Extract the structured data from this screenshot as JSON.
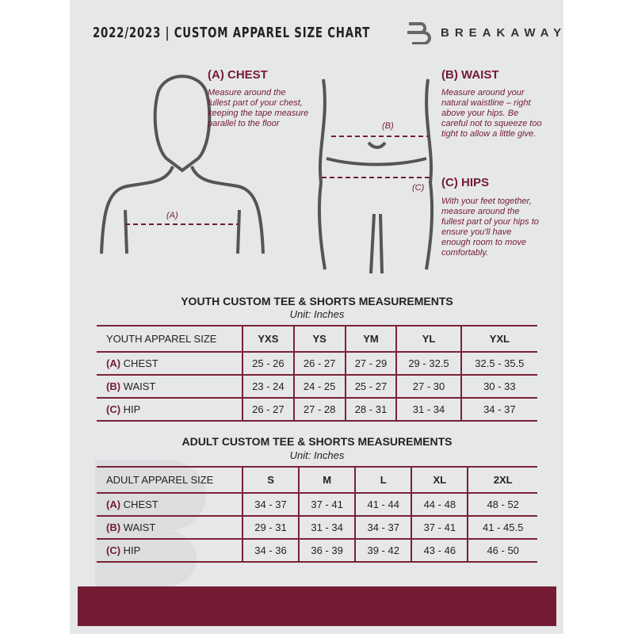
{
  "header": {
    "title": "2022/2023  |  CUSTOM APPAREL SIZE CHART",
    "brand": "BREAKAWAY"
  },
  "chest": {
    "heading": "(A) CHEST",
    "text": "Measure around the fullest part of your chest, keeping the tape measure parallel to the floor",
    "marker": "(A)"
  },
  "waist": {
    "heading": "(B) WAIST",
    "text": "Measure around your natural waistline – right above your hips. Be careful not to squeeze too tight to allow a little give.",
    "marker": "(B)"
  },
  "hips": {
    "heading": "(C) HIPS",
    "text": "With your feet together, measure around the fullest part of your hips to ensure you'll have enough room to move comfortably.",
    "marker": "(C)"
  },
  "colors": {
    "accent": "#731c33",
    "background": "#e6e7e8"
  },
  "youth": {
    "title": "YOUTH CUSTOM TEE & SHORTS MEASUREMENTS",
    "unit": "Unit: Inches",
    "size_label": "YOUTH APPAREL SIZE",
    "sizes": [
      "YXS",
      "YS",
      "YM",
      "YL",
      "YXL"
    ],
    "rows": [
      {
        "letter": "(A)",
        "name": "CHEST",
        "values": [
          "25 - 26",
          "26 - 27",
          "27 - 29",
          "29 - 32.5",
          "32.5 - 35.5"
        ]
      },
      {
        "letter": "(B)",
        "name": "WAIST",
        "values": [
          "23 - 24",
          "24 - 25",
          "25 - 27",
          "27 - 30",
          "30 - 33"
        ]
      },
      {
        "letter": "(C)",
        "name": "HIP",
        "values": [
          "26 - 27",
          "27 - 28",
          "28 - 31",
          "31 - 34",
          "34 - 37"
        ]
      }
    ]
  },
  "adult": {
    "title": "ADULT CUSTOM TEE & SHORTS MEASUREMENTS",
    "unit": "Unit: Inches",
    "size_label": "ADULT APPAREL SIZE",
    "sizes": [
      "S",
      "M",
      "L",
      "XL",
      "2XL"
    ],
    "rows": [
      {
        "letter": "(A)",
        "name": "CHEST",
        "values": [
          "34 - 37",
          "37 - 41",
          "41 - 44",
          "44 - 48",
          "48 - 52"
        ]
      },
      {
        "letter": "(B)",
        "name": "WAIST",
        "values": [
          "29 - 31",
          "31 - 34",
          "34 - 37",
          "37 - 41",
          "41 - 45.5"
        ]
      },
      {
        "letter": "(C)",
        "name": "HIP",
        "values": [
          "34 - 36",
          "36 - 39",
          "39 - 42",
          "43 - 46",
          "46 - 50"
        ]
      }
    ]
  }
}
